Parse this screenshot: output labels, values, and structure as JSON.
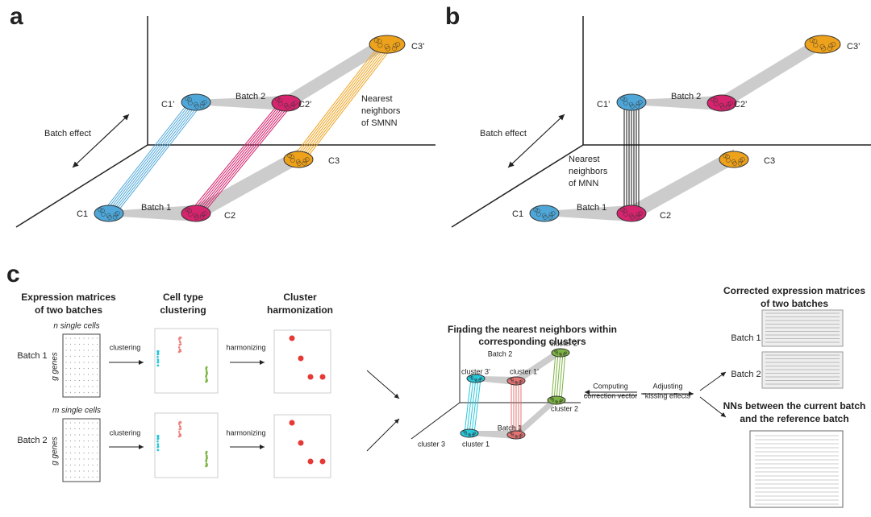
{
  "panel_a": {
    "letter": "a",
    "batch_effect": "Batch effect",
    "batch_1": "Batch 1",
    "batch_2": "Batch 2",
    "clusters": [
      "C1",
      "C2",
      "C3",
      "C1’",
      "C2’",
      "C3’"
    ],
    "nn_label": [
      "Nearest",
      "neighbors",
      "of SMNN"
    ]
  },
  "panel_b": {
    "letter": "b",
    "batch_effect": "Batch effect",
    "batch_1": "Batch 1",
    "batch_2": "Batch 2",
    "clusters": [
      "C1",
      "C2",
      "C3",
      "C1’",
      "C2’",
      "C3’"
    ],
    "nn_label": [
      "Nearest",
      "neighbors",
      "of MNN"
    ]
  },
  "panel_c": {
    "letter": "c",
    "step1": {
      "title": [
        "Expression matrices",
        "of two batches"
      ],
      "batch_1": {
        "label": "Batch 1",
        "cells": "n single cells",
        "genes": "g genes"
      },
      "batch_2": {
        "label": "Batch 2",
        "cells": "m single cells",
        "genes": "g genes"
      }
    },
    "clustering": [
      "clustering",
      "clustering"
    ],
    "harmonizing": [
      "harmonizing",
      "harmonizing"
    ],
    "step2": {
      "title": [
        "Cell type",
        "clustering"
      ]
    },
    "step3": {
      "title": [
        "Cluster",
        "harmonization"
      ]
    },
    "step4": {
      "title": [
        "Finding the nearest neighbors within",
        "corresponding clusters"
      ],
      "batch_1": "Batch 1",
      "batch_2": "Batch 2",
      "clusters": [
        "cluster 1",
        "cluster 2",
        "cluster 3",
        "cluster 1’",
        "cluster 2’",
        "cluster 3’"
      ]
    },
    "computing": [
      "Computing",
      "correction vector"
    ],
    "adjusting": [
      "Adjusting",
      "“kissing effects”"
    ],
    "corrected": {
      "title": [
        "Corrected expression matrices",
        "of two batches"
      ],
      "batch_1": "Batch 1",
      "batch_2": "Batch 2"
    },
    "nns": {
      "title": [
        "NNs between the current batch",
        "and the reference batch"
      ]
    }
  }
}
